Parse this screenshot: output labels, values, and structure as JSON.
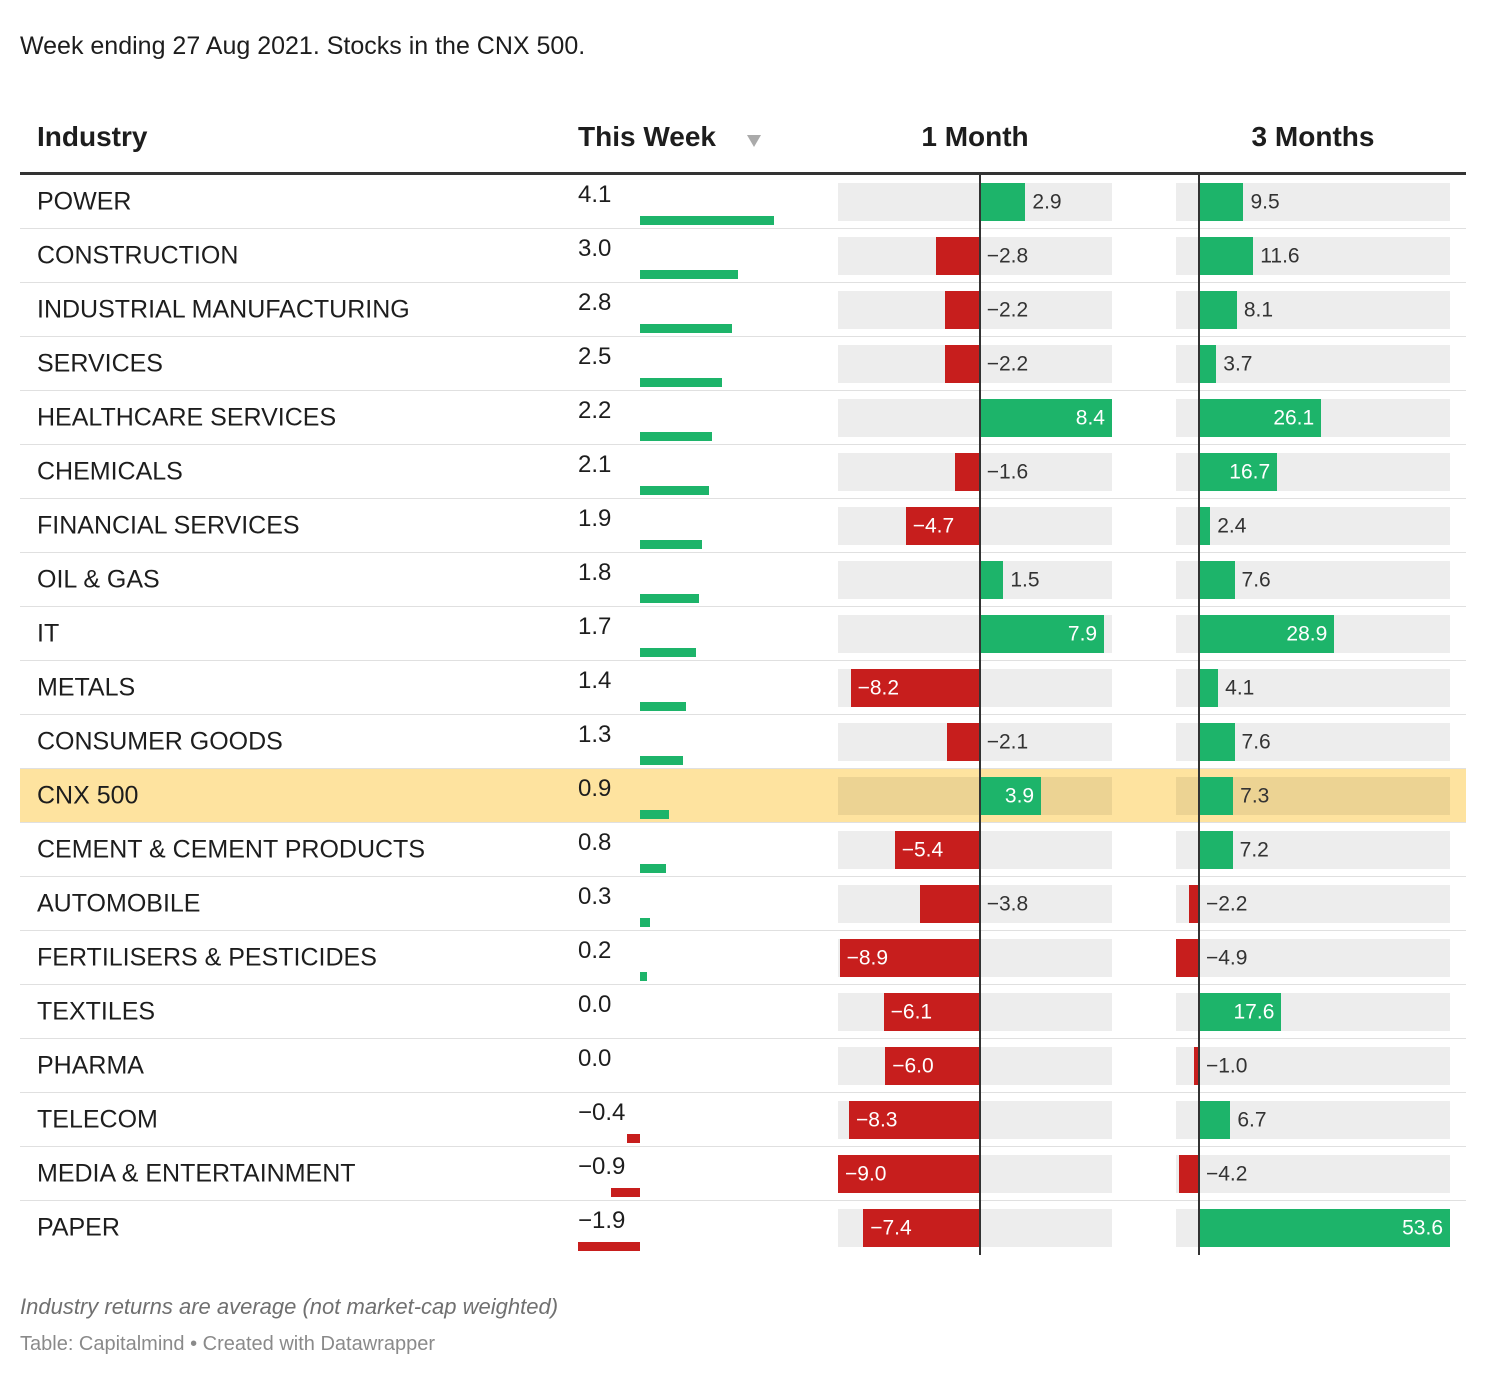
{
  "subtitle": "Week ending 27 Aug 2021. Stocks in the CNX 500.",
  "table": {
    "label_header": "Industry",
    "row_labels": [
      "POWER",
      "CONSTRUCTION",
      "INDUSTRIAL MANUFACTURING",
      "SERVICES",
      "HEALTHCARE SERVICES",
      "CHEMICALS",
      "FINANCIAL SERVICES",
      "OIL & GAS",
      "IT",
      "METALS",
      "CONSUMER GOODS",
      "CNX 500",
      "CEMENT & CEMENT PRODUCTS",
      "AUTOMOBILE",
      "FERTILISERS & PESTICIDES",
      "TEXTILES",
      "PHARMA",
      "TELECOM",
      "MEDIA & ENTERTAINMENT",
      "PAPER"
    ],
    "columns": [
      {
        "header": "This Week",
        "values": [
          4.1,
          3.0,
          2.8,
          2.5,
          2.2,
          2.1,
          1.9,
          1.8,
          1.7,
          1.4,
          1.3,
          0.9,
          0.8,
          0.3,
          0.2,
          0.0,
          0.0,
          -0.4,
          -0.9,
          -1.9
        ],
        "value_labels": [
          "4.1",
          "3.0",
          "2.8",
          "2.5",
          "2.2",
          "2.1",
          "1.9",
          "1.8",
          "1.7",
          "1.4",
          "1.3",
          "0.9",
          "0.8",
          "0.3",
          "0.2",
          "0.0",
          "0.0",
          "−0.4",
          "−0.9",
          "−1.9"
        ]
      },
      {
        "header": "1 Month",
        "values": [
          2.9,
          -2.8,
          -2.2,
          -2.2,
          8.4,
          -1.6,
          -4.7,
          1.5,
          7.9,
          -8.2,
          -2.1,
          3.9,
          -5.4,
          -3.8,
          -8.9,
          -6.1,
          -6.0,
          -8.3,
          -9.0,
          -7.4
        ],
        "value_labels": [
          "2.9",
          "−2.8",
          "−2.2",
          "−2.2",
          "8.4",
          "−1.6",
          "−4.7",
          "1.5",
          "7.9",
          "−8.2",
          "−2.1",
          "3.9",
          "−5.4",
          "−3.8",
          "−8.9",
          "−6.1",
          "−6.0",
          "−8.3",
          "−9.0",
          "−7.4"
        ]
      },
      {
        "header": "3 Months",
        "values": [
          9.5,
          11.6,
          8.1,
          3.7,
          26.1,
          16.7,
          2.4,
          7.6,
          28.9,
          4.1,
          7.6,
          7.3,
          7.2,
          -2.2,
          -4.9,
          17.6,
          -1.0,
          6.7,
          -4.2,
          53.6
        ],
        "value_labels": [
          "9.5",
          "11.6",
          "8.1",
          "3.7",
          "26.1",
          "16.7",
          "2.4",
          "7.6",
          "28.9",
          "4.1",
          "7.6",
          "7.3",
          "7.2",
          "−2.2",
          "−4.9",
          "17.6",
          "−1.0",
          "6.7",
          "−4.2",
          "53.6"
        ]
      }
    ],
    "highlighted_row": 11,
    "colors": {
      "positive": "#1db46a",
      "negative": "#c71e1d",
      "highlight": "#fee39f"
    }
  },
  "notes": "Industry returns are average (not market-cap weighted)",
  "source": "Table: Capitalmind • Created with Datawrapper"
}
